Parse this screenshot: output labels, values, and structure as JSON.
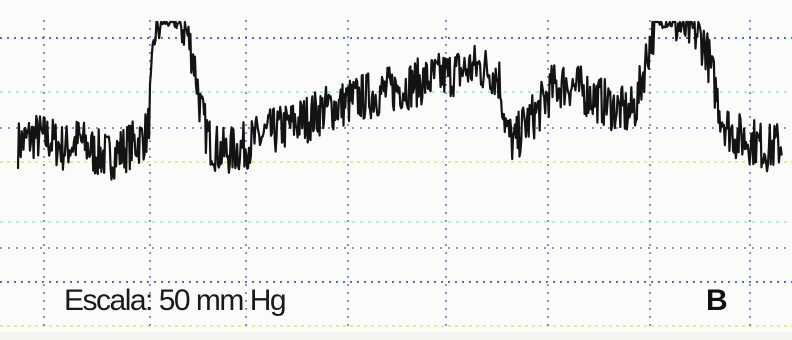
{
  "figure": {
    "scale_label": "Escala: 50 mm Hg",
    "panel_label": "B"
  },
  "chart_data": {
    "type": "line",
    "title": "",
    "xlabel": "",
    "ylabel": "",
    "scale_text": "Escala: 50 mm Hg",
    "grid": true,
    "legend": "none",
    "ylim": [
      0,
      100
    ],
    "series": [
      {
        "x": [
          0,
          2,
          4,
          6,
          8,
          10,
          12,
          14,
          16,
          17,
          18,
          19,
          20,
          21,
          22,
          23,
          24,
          25,
          26,
          27,
          28,
          29,
          30,
          32,
          34,
          36,
          38,
          40,
          42,
          44,
          46,
          48,
          50,
          52,
          54,
          56,
          58,
          60,
          62,
          63,
          64,
          65,
          66,
          67,
          68,
          69,
          70,
          72,
          74,
          76,
          78,
          80,
          81,
          82,
          83,
          84,
          85,
          86,
          87,
          88,
          89,
          90,
          91,
          92,
          93,
          94,
          96,
          98,
          100
        ],
        "values": [
          40,
          44,
          43,
          38,
          42,
          36,
          34,
          38,
          42,
          46,
          97,
          100,
          100,
          99,
          96,
          82,
          55,
          42,
          38,
          36,
          37,
          38,
          40,
          44,
          47,
          50,
          53,
          57,
          59,
          62,
          64,
          66,
          68,
          70,
          72,
          74,
          76,
          78,
          76,
          72,
          46,
          40,
          48,
          52,
          56,
          62,
          68,
          70,
          66,
          62,
          58,
          55,
          60,
          78,
          95,
          100,
          100,
          99,
          97,
          96,
          94,
          88,
          72,
          55,
          48,
          44,
          42,
          38,
          40
        ]
      }
    ],
    "colors": {
      "trace": "#131313",
      "grid_blue": "#5a6fb0",
      "grid_cyan": "#a8dde0",
      "grid_yellow": "#e9e07a",
      "background": "#fbfcf9"
    }
  }
}
